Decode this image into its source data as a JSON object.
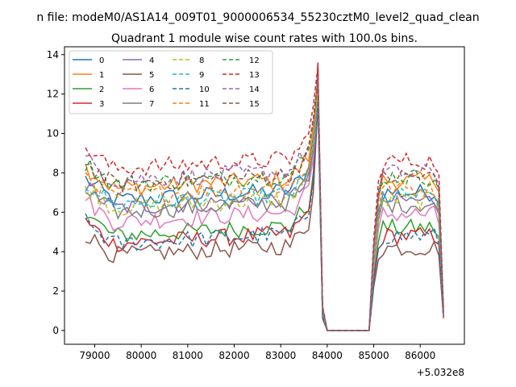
{
  "chart_data": {
    "type": "line",
    "suptitle": "n file: modeM0/AS1A14_009T01_9000006534_55230cztM0_level2_quad_clean",
    "title": "Quadrant 1 module wise count rates with 100.0s bins.",
    "xlabel": "",
    "ylabel": "",
    "x_offset_label": "+5.032e8",
    "xlim": [
      78350,
      86950
    ],
    "ylim": [
      -0.7,
      14.4
    ],
    "xticks": [
      79000,
      80000,
      81000,
      82000,
      83000,
      84000,
      85000,
      86000
    ],
    "yticks": [
      0,
      2,
      4,
      6,
      8,
      10,
      12,
      14
    ],
    "legend_position": "top-left",
    "legend_columns": 4,
    "time_bins": {
      "start": 78800,
      "step": 100,
      "end_segment1": 84000,
      "gap": [
        84000,
        84900
      ],
      "start_segment2": 84900,
      "end": 86500
    },
    "series": [
      {
        "name": "0",
        "color": "#1f77b4",
        "dash": "solid",
        "level": 6.8,
        "end_peak": 12.4
      },
      {
        "name": "1",
        "color": "#ff7f0e",
        "dash": "solid",
        "level": 7.4,
        "end_peak": 12.6
      },
      {
        "name": "2",
        "color": "#2ca02c",
        "dash": "solid",
        "level": 5.0,
        "end_peak": 11.8
      },
      {
        "name": "3",
        "color": "#d62728",
        "dash": "solid",
        "level": 4.6,
        "end_peak": 13.6
      },
      {
        "name": "4",
        "color": "#9467bd",
        "dash": "solid",
        "level": 6.4,
        "end_peak": 12.2
      },
      {
        "name": "5",
        "color": "#8c564b",
        "dash": "solid",
        "level": 4.0,
        "end_peak": 11.5
      },
      {
        "name": "6",
        "color": "#e377c2",
        "dash": "solid",
        "level": 5.7,
        "end_peak": 12.0
      },
      {
        "name": "7",
        "color": "#7f7f7f",
        "dash": "solid",
        "level": 6.2,
        "end_peak": 12.3
      },
      {
        "name": "8",
        "color": "#bcbd22",
        "dash": "dashed",
        "level": 6.4,
        "end_peak": 12.2
      },
      {
        "name": "9",
        "color": "#17becf",
        "dash": "dashed",
        "level": 6.6,
        "end_peak": 12.1
      },
      {
        "name": "10",
        "color": "#1f77b4",
        "dash": "dashed",
        "level": 4.6,
        "end_peak": 11.6
      },
      {
        "name": "11",
        "color": "#ff7f0e",
        "dash": "dashed",
        "level": 7.0,
        "end_peak": 12.4
      },
      {
        "name": "12",
        "color": "#2ca02c",
        "dash": "dashed",
        "level": 7.6,
        "end_peak": 12.7
      },
      {
        "name": "13",
        "color": "#d62728",
        "dash": "dashed",
        "level": 8.4,
        "end_peak": 13.4
      },
      {
        "name": "14",
        "color": "#9467bd",
        "dash": "dashed",
        "level": 7.8,
        "end_peak": 12.9
      },
      {
        "name": "15",
        "color": "#8c564b",
        "dash": "dashed",
        "level": 7.6,
        "end_peak": 12.8
      }
    ]
  }
}
